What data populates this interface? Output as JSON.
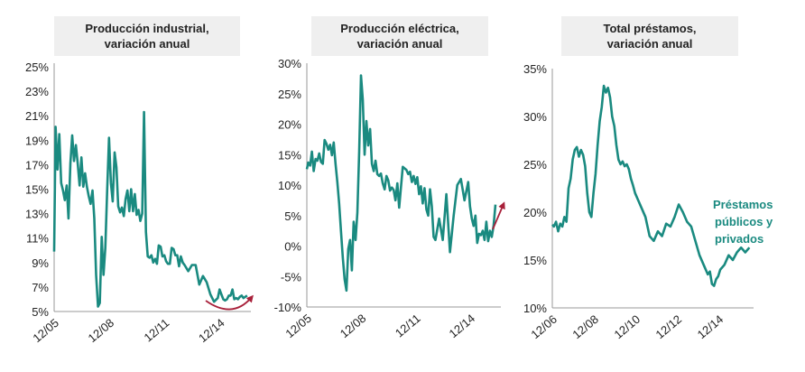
{
  "colors": {
    "series": "#1a8a80",
    "arrow": "#a8203a",
    "title_bg": "#efefef",
    "axis": "#999999"
  },
  "chart_data": [
    {
      "type": "line",
      "title": [
        "Producción industrial,",
        "variación anual"
      ],
      "ylim": [
        5,
        25
      ],
      "yticks": [
        25,
        23,
        21,
        19,
        17,
        15,
        13,
        11,
        9,
        7,
        5
      ],
      "ytick_labels": [
        "25%",
        "23%",
        "21%",
        "19%",
        "17%",
        "15%",
        "13%",
        "11%",
        "9%",
        "7%",
        "5%"
      ],
      "xlim": [
        2005.92,
        2016.6
      ],
      "xticks": [
        2005.92,
        2008.92,
        2011.92,
        2014.92
      ],
      "xtick_labels": [
        "12/05",
        "12/08",
        "12/11",
        "12/14"
      ],
      "series": [
        {
          "name": "Producción industrial",
          "x": [
            2005.92,
            2006.0,
            2006.1,
            2006.2,
            2006.3,
            2006.4,
            2006.5,
            2006.6,
            2006.7,
            2006.8,
            2006.9,
            2007.0,
            2007.1,
            2007.2,
            2007.3,
            2007.4,
            2007.5,
            2007.6,
            2007.7,
            2007.8,
            2007.9,
            2008.0,
            2008.1,
            2008.2,
            2008.3,
            2008.4,
            2008.5,
            2008.6,
            2008.7,
            2008.8,
            2008.9,
            2009.0,
            2009.1,
            2009.2,
            2009.3,
            2009.4,
            2009.5,
            2009.6,
            2009.7,
            2009.8,
            2009.9,
            2010.0,
            2010.1,
            2010.2,
            2010.3,
            2010.4,
            2010.5,
            2010.6,
            2010.7,
            2010.8,
            2010.9,
            2011.0,
            2011.1,
            2011.2,
            2011.3,
            2011.4,
            2011.5,
            2011.6,
            2011.7,
            2011.8,
            2011.9,
            2012.0,
            2012.1,
            2012.2,
            2012.3,
            2012.4,
            2012.5,
            2012.6,
            2012.7,
            2012.8,
            2012.9,
            2013.0,
            2013.2,
            2013.4,
            2013.6,
            2013.8,
            2014.0,
            2014.2,
            2014.4,
            2014.6,
            2014.8,
            2014.9,
            2015.0,
            2015.1,
            2015.2,
            2015.3,
            2015.4,
            2015.5,
            2015.6,
            2015.7,
            2015.8,
            2015.9,
            2016.0,
            2016.1,
            2016.2,
            2016.3,
            2016.4
          ],
          "values": [
            9.9,
            20.1,
            16.6,
            19.5,
            15.5,
            14.9,
            14.1,
            15.3,
            12.6,
            17.1,
            19.4,
            17.3,
            18.6,
            17.1,
            15.3,
            17.6,
            15.2,
            16.3,
            15.2,
            14.4,
            13.8,
            14.9,
            12.6,
            8.0,
            5.4,
            5.7,
            11.1,
            8.0,
            10.2,
            15.0,
            19.2,
            15.5,
            14.0,
            18.0,
            16.8,
            13.6,
            13.1,
            13.5,
            12.8,
            14.2,
            14.9,
            13.2,
            15.0,
            13.2,
            14.6,
            12.9,
            13.3,
            12.4,
            13.0,
            21.3,
            11.5,
            9.5,
            9.4,
            9.6,
            9.0,
            9.3,
            8.9,
            10.4,
            10.3,
            9.5,
            9.6,
            9.1,
            8.9,
            8.9,
            10.2,
            10.1,
            9.6,
            9.6,
            8.7,
            9.5,
            9.0,
            8.8,
            8.3,
            8.8,
            8.8,
            7.2,
            7.9,
            7.4,
            6.4,
            5.8,
            6.1,
            6.8,
            6.4,
            6.0,
            5.9,
            6.0,
            6.3,
            6.3,
            6.8,
            6.0,
            6.1,
            6.0,
            6.2,
            6.3,
            6.1,
            6.2,
            6.3
          ]
        }
      ],
      "annotation": "arrow-up-right"
    },
    {
      "type": "line",
      "title": [
        "Producción eléctrica,",
        "variación anual"
      ],
      "ylim": [
        -10,
        30
      ],
      "yticks": [
        30,
        25,
        20,
        15,
        10,
        5,
        0,
        -5,
        -10
      ],
      "ytick_labels": [
        "30%",
        "25%",
        "20%",
        "15%",
        "10%",
        "5%",
        "0%",
        "-5%",
        "-10%"
      ],
      "xlim": [
        2005.92,
        2016.6
      ],
      "xticks": [
        2005.92,
        2008.92,
        2011.92,
        2014.92
      ],
      "xtick_labels": [
        "12/05",
        "12/08",
        "12/11",
        "12/14"
      ],
      "series": [
        {
          "name": "Producción eléctrica",
          "x": [
            2005.92,
            2006.0,
            2006.1,
            2006.2,
            2006.3,
            2006.4,
            2006.5,
            2006.6,
            2006.7,
            2006.8,
            2006.9,
            2007.0,
            2007.1,
            2007.2,
            2007.3,
            2007.4,
            2007.5,
            2007.6,
            2007.7,
            2007.8,
            2007.9,
            2008.0,
            2008.1,
            2008.2,
            2008.3,
            2008.4,
            2008.5,
            2008.6,
            2008.7,
            2008.8,
            2008.9,
            2009.0,
            2009.1,
            2009.2,
            2009.3,
            2009.4,
            2009.5,
            2009.6,
            2009.7,
            2009.8,
            2009.9,
            2010.0,
            2010.1,
            2010.2,
            2010.3,
            2010.4,
            2010.5,
            2010.6,
            2010.7,
            2010.8,
            2010.9,
            2011.0,
            2011.2,
            2011.4,
            2011.5,
            2011.6,
            2011.7,
            2011.8,
            2011.9,
            2012.0,
            2012.1,
            2012.2,
            2012.3,
            2012.4,
            2012.5,
            2012.6,
            2012.7,
            2012.8,
            2012.9,
            2013.0,
            2013.2,
            2013.4,
            2013.6,
            2013.8,
            2014.0,
            2014.2,
            2014.4,
            2014.6,
            2014.8,
            2014.9,
            2015.0,
            2015.1,
            2015.2,
            2015.3,
            2015.4,
            2015.5,
            2015.6,
            2015.7,
            2015.8,
            2015.9,
            2016.0,
            2016.1,
            2016.2,
            2016.3
          ],
          "values": [
            12.6,
            13.7,
            13.2,
            15.5,
            12.3,
            14.3,
            14.0,
            15.2,
            13.8,
            13.5,
            17.4,
            16.8,
            15.8,
            16.6,
            14.9,
            17.0,
            13.5,
            10.5,
            7.0,
            2.5,
            -2.0,
            -5.5,
            -7.3,
            -0.5,
            1.0,
            -4.0,
            4.0,
            1.0,
            5.5,
            15.5,
            28.0,
            24.0,
            15.0,
            20.5,
            16.5,
            19.2,
            13.5,
            12.3,
            14.0,
            11.8,
            11.5,
            11.9,
            10.3,
            9.3,
            11.5,
            10.8,
            9.1,
            9.6,
            9.2,
            7.5,
            10.3,
            6.3,
            13.0,
            12.5,
            11.8,
            12.2,
            10.5,
            11.5,
            10.2,
            11.3,
            8.5,
            9.8,
            7.0,
            9.5,
            6.0,
            5.0,
            9.3,
            6.5,
            1.5,
            1.0,
            4.5,
            1.0,
            8.5,
            -1.0,
            5.0,
            10.0,
            11.0,
            7.5,
            10.5,
            6.5,
            4.5,
            3.3,
            5.0,
            0.5,
            2.0,
            1.8,
            2.5,
            1.0,
            4.0,
            0.8,
            2.5,
            1.5,
            3.3,
            6.8
          ]
        }
      ],
      "annotation": "arrow-up-right"
    },
    {
      "type": "line",
      "title": [
        "Total préstamos,",
        "variación anual"
      ],
      "ylim": [
        10,
        35
      ],
      "yticks": [
        35,
        30,
        25,
        20,
        15,
        10
      ],
      "ytick_labels": [
        "35%",
        "30%",
        "25%",
        "20%",
        "15%",
        "10%"
      ],
      "xlim": [
        2006.92,
        2016.6
      ],
      "xticks": [
        2006.92,
        2008.92,
        2010.92,
        2012.92,
        2014.92
      ],
      "xtick_labels": [
        "12/06",
        "12/08",
        "12/10",
        "12/12",
        "12/14"
      ],
      "series": [
        {
          "name": "Préstamos públicos y privados",
          "x": [
            2006.92,
            2007.0,
            2007.1,
            2007.2,
            2007.3,
            2007.4,
            2007.5,
            2007.6,
            2007.7,
            2007.8,
            2007.9,
            2008.0,
            2008.1,
            2008.2,
            2008.3,
            2008.4,
            2008.5,
            2008.6,
            2008.7,
            2008.8,
            2008.9,
            2009.0,
            2009.1,
            2009.2,
            2009.3,
            2009.4,
            2009.5,
            2009.6,
            2009.7,
            2009.8,
            2009.9,
            2010.0,
            2010.1,
            2010.2,
            2010.3,
            2010.4,
            2010.5,
            2010.6,
            2010.7,
            2010.8,
            2010.9,
            2011.0,
            2011.2,
            2011.4,
            2011.6,
            2011.8,
            2012.0,
            2012.2,
            2012.4,
            2012.6,
            2012.8,
            2013.0,
            2013.2,
            2013.4,
            2013.6,
            2013.8,
            2014.0,
            2014.2,
            2014.4,
            2014.5,
            2014.6,
            2014.7,
            2014.8,
            2014.9,
            2015.0,
            2015.2,
            2015.4,
            2015.6,
            2015.8,
            2016.0,
            2016.2,
            2016.4
          ],
          "values": [
            18.7,
            18.5,
            19.0,
            18.0,
            18.8,
            18.5,
            19.5,
            19.0,
            22.5,
            23.5,
            25.5,
            26.5,
            26.8,
            25.8,
            26.5,
            26.0,
            24.8,
            22.0,
            20.0,
            19.5,
            22.0,
            24.0,
            27.0,
            29.5,
            31.0,
            33.2,
            32.5,
            33.0,
            32.0,
            30.0,
            29.0,
            27.0,
            25.5,
            25.0,
            25.3,
            24.8,
            25.0,
            24.5,
            23.5,
            22.8,
            22.0,
            21.5,
            20.5,
            19.5,
            17.5,
            17.0,
            18.0,
            17.5,
            18.8,
            18.5,
            19.5,
            20.8,
            20.0,
            19.0,
            18.5,
            17.0,
            15.5,
            14.5,
            13.5,
            13.8,
            12.5,
            12.3,
            13.0,
            13.3,
            14.0,
            14.5,
            15.5,
            15.0,
            15.8,
            16.3,
            15.8,
            16.3
          ]
        }
      ],
      "annotation": "Préstamos públicos y privados",
      "annotation_lines": [
        "Préstamos",
        "públicos y",
        "privados"
      ]
    }
  ]
}
